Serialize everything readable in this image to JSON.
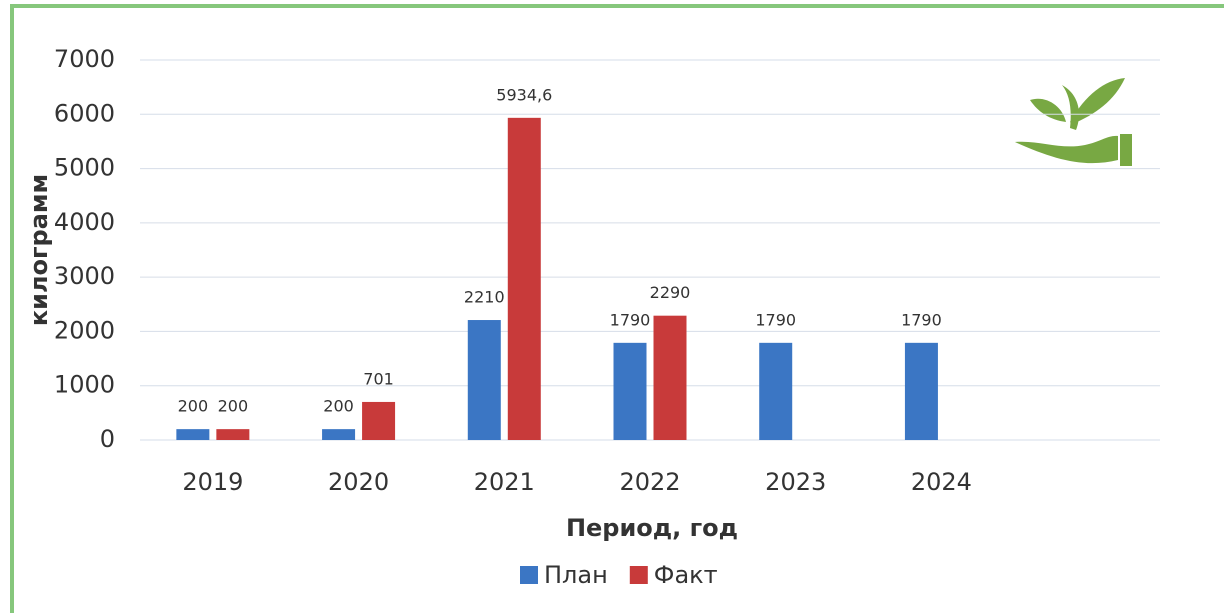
{
  "chart_data": {
    "type": "bar",
    "y_label": "килограмм",
    "x_label": "Период, год",
    "categories": [
      "2019",
      "2020",
      "2021",
      "2022",
      "2023",
      "2024",
      null
    ],
    "series": [
      {
        "name": "План",
        "color": "#3b76c4",
        "values": [
          200,
          200,
          2210,
          1790,
          1790,
          1790,
          null
        ]
      },
      {
        "name": "Факт",
        "color": "#c83a3a",
        "values": [
          200,
          701,
          5934.6,
          2290,
          null,
          null,
          null
        ],
        "value_labels": [
          "200",
          "701",
          "5934,6",
          "2290",
          null,
          null,
          null
        ]
      }
    ],
    "ylim": [
      0,
      7000
    ],
    "yticks": [
      0,
      1000,
      2000,
      3000,
      4000,
      5000,
      6000,
      7000
    ],
    "grid": true,
    "legend": "bottom"
  }
}
